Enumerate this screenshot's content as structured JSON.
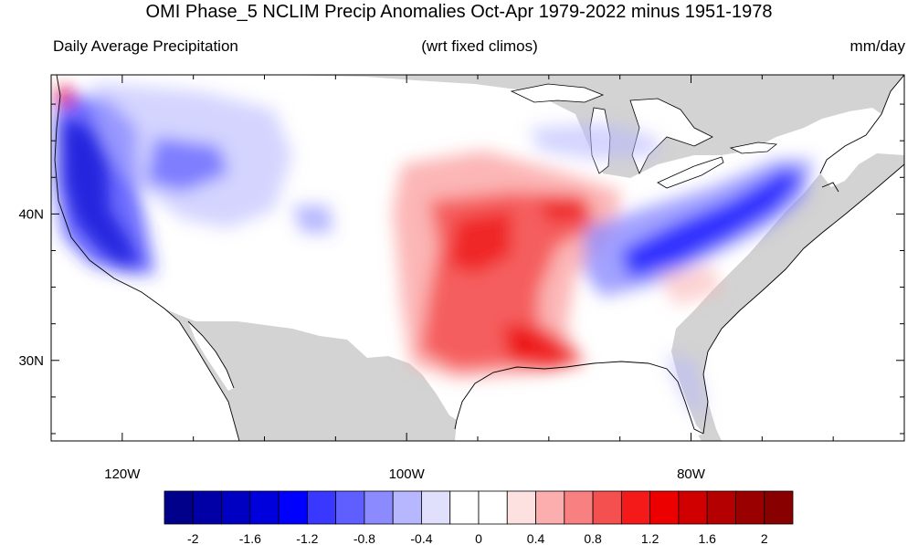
{
  "title": "OMI Phase_5 NCLIM Precip Anomalies Oct-Apr 1979-2022 minus 1951-1978",
  "subtitle_left": "Daily Average Precipitation",
  "subtitle_center": "(wrt fixed climos)",
  "subtitle_right": "mm/day",
  "map": {
    "projection": "cylindrical-equidistant",
    "lon_range": [
      -125,
      -65
    ],
    "lat_range": [
      24.5,
      49.5
    ],
    "land_outside_domain_color": "#d3d3d3",
    "x_ticks": [
      {
        "lon": -120,
        "label": "120W"
      },
      {
        "lon": -100,
        "label": "100W"
      },
      {
        "lon": -80,
        "label": "80W"
      }
    ],
    "y_ticks": [
      {
        "lat": 40,
        "label": "40N"
      },
      {
        "lat": 30,
        "label": "30N"
      }
    ],
    "anomaly_regions": [
      {
        "name": "Pacific Northwest / California coast",
        "sign": "negative",
        "magnitude": "about -2"
      },
      {
        "name": "Northern Rockies",
        "sign": "negative",
        "magnitude": "about -0.8"
      },
      {
        "name": "Southern Plains and Gulf Coast",
        "sign": "positive",
        "magnitude": "about 1.6 to 2"
      },
      {
        "name": "Ohio Valley to Mid-Atlantic",
        "sign": "negative",
        "magnitude": "about -1.2"
      },
      {
        "name": "Florida Peninsula",
        "sign": "negative",
        "magnitude": "about -0.4"
      }
    ]
  },
  "colorbar": {
    "colors": [
      "#00008b",
      "#0000a6",
      "#0000c2",
      "#0000dd",
      "#0000ff",
      "#3838ff",
      "#5f5fff",
      "#8b8bff",
      "#b7b7ff",
      "#e0e0fc",
      "#ffffff",
      "#ffffff",
      "#fde1e1",
      "#fcaeae",
      "#f88080",
      "#f45050",
      "#f51a1a",
      "#ec0000",
      "#d00000",
      "#b40000",
      "#9a0000",
      "#880000"
    ],
    "labels": [
      {
        "boundary": 1,
        "text": "-2"
      },
      {
        "boundary": 3,
        "text": "-1.6"
      },
      {
        "boundary": 5,
        "text": "-1.2"
      },
      {
        "boundary": 7,
        "text": "-0.8"
      },
      {
        "boundary": 9,
        "text": "-0.4"
      },
      {
        "boundary": 11,
        "text": "0"
      },
      {
        "boundary": 13,
        "text": "0.4"
      },
      {
        "boundary": 15,
        "text": "0.8"
      },
      {
        "boundary": 17,
        "text": "1.2"
      },
      {
        "boundary": 19,
        "text": "1.6"
      },
      {
        "boundary": 21,
        "text": "2"
      }
    ]
  }
}
